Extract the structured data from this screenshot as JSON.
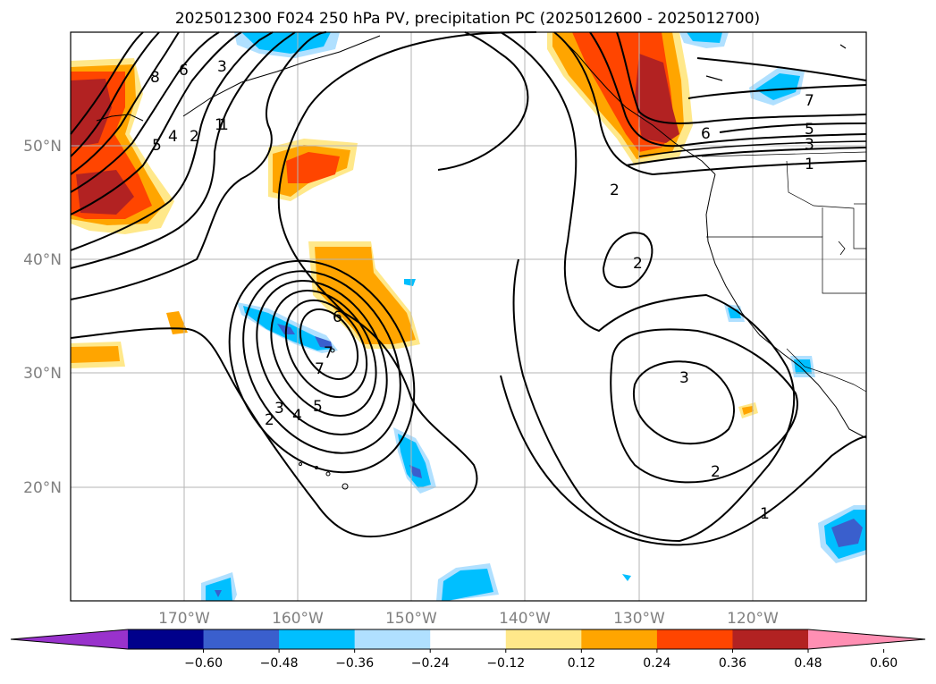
{
  "title": "2025012300 F024 250 hPa PV, precipitation PC (2025012600 - 2025012700)",
  "map": {
    "lon_range": [
      -180,
      -110
    ],
    "lat_range": [
      10,
      60
    ],
    "lat_ticks": [
      "50°N",
      "40°N",
      "30°N",
      "20°N"
    ],
    "lon_ticks": [
      "170°W",
      "160°W",
      "150°W",
      "140°W",
      "130°W",
      "120°W"
    ],
    "gridlines": true
  },
  "contour_labels": [
    "8",
    "6",
    "3",
    "1",
    "5",
    "4",
    "2",
    "1",
    "6",
    "7",
    "2",
    "3",
    "4",
    "5",
    "7",
    "2",
    "2",
    "3",
    "6",
    "7",
    "5",
    "3",
    "1",
    "2",
    "1"
  ],
  "colorbar": {
    "tick_labels": [
      "−0.60",
      "−0.48",
      "−0.36",
      "−0.24",
      "−0.12",
      "0.12",
      "0.24",
      "0.36",
      "0.48",
      "0.60"
    ],
    "colors": [
      "#9932cc",
      "#00008b",
      "#3a5fcd",
      "#00bfff",
      "#b0e0ff",
      "#ffffff",
      "#ffe88a",
      "#ffa500",
      "#ff4500",
      "#b22222",
      "#ff8fb3"
    ],
    "extend": "both"
  }
}
